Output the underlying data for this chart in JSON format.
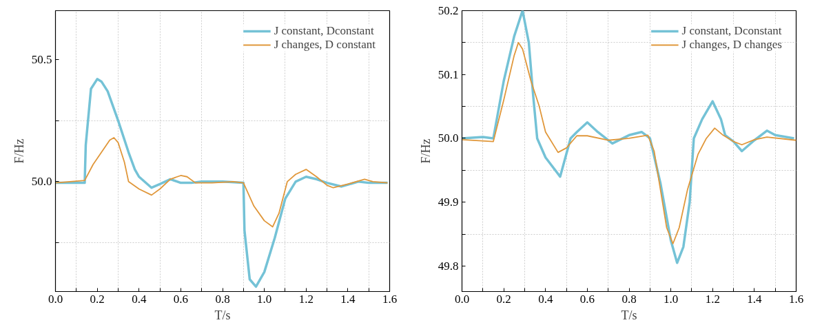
{
  "chart_data": [
    {
      "type": "line",
      "xlabel": "T/s",
      "ylabel": "F/Hz",
      "xlim": [
        0,
        1.6
      ],
      "ylim": [
        49.55,
        50.7
      ],
      "grid": true,
      "legend": "top right",
      "line_style": "solid",
      "xticks": [
        {
          "value": 0,
          "label": "0.0"
        },
        {
          "value": 0.1,
          "label": null
        },
        {
          "value": 0.2,
          "label": "0.2"
        },
        {
          "value": 0.3,
          "label": null
        },
        {
          "value": 0.4,
          "label": "0.4"
        },
        {
          "value": 0.5,
          "label": null
        },
        {
          "value": 0.6,
          "label": "0.6"
        },
        {
          "value": 0.7,
          "label": null
        },
        {
          "value": 0.8,
          "label": "0.8"
        },
        {
          "value": 0.9,
          "label": null
        },
        {
          "value": 1,
          "label": "1.0"
        },
        {
          "value": 1.1,
          "label": null
        },
        {
          "value": 1.2,
          "label": "1.2"
        },
        {
          "value": 1.3,
          "label": null
        },
        {
          "value": 1.4,
          "label": "1.4"
        },
        {
          "value": 1.5,
          "label": null
        },
        {
          "value": 1.6,
          "label": "1.6"
        }
      ],
      "yticks": [
        {
          "value": 49.75,
          "label": null
        },
        {
          "value": 50,
          "label": "50.0"
        },
        {
          "value": 50.25,
          "label": null
        },
        {
          "value": 50.5,
          "label": "50.5"
        }
      ],
      "series": [
        {
          "name": "J constant, Dconstant",
          "color": "#74c2d6",
          "x": [
            0,
            0.14,
            0.145,
            0.17,
            0.2,
            0.22,
            0.25,
            0.3,
            0.35,
            0.38,
            0.4,
            0.46,
            0.5,
            0.55,
            0.6,
            0.65,
            0.7,
            0.8,
            0.9,
            0.905,
            0.93,
            0.96,
            1.0,
            1.05,
            1.1,
            1.15,
            1.2,
            1.25,
            1.3,
            1.37,
            1.45,
            1.5,
            1.59
          ],
          "values": [
            49.995,
            49.995,
            50.15,
            50.38,
            50.42,
            50.41,
            50.37,
            50.25,
            50.12,
            50.05,
            50.02,
            49.975,
            49.99,
            50.01,
            49.995,
            49.995,
            50.0,
            50.0,
            49.995,
            49.8,
            49.6,
            49.57,
            49.63,
            49.77,
            49.93,
            50.0,
            50.02,
            50.01,
            49.995,
            49.98,
            50.0,
            49.995,
            49.995
          ]
        },
        {
          "name": "J changes, D constant",
          "color": "#e0973a",
          "x": [
            0,
            0.14,
            0.18,
            0.22,
            0.26,
            0.28,
            0.3,
            0.33,
            0.35,
            0.4,
            0.46,
            0.5,
            0.55,
            0.6,
            0.63,
            0.67,
            0.75,
            0.85,
            0.9,
            0.95,
            1.0,
            1.04,
            1.07,
            1.11,
            1.15,
            1.2,
            1.25,
            1.3,
            1.33,
            1.4,
            1.48,
            1.52,
            1.59
          ],
          "values": [
            49.995,
            50.005,
            50.07,
            50.12,
            50.17,
            50.18,
            50.16,
            50.08,
            50.0,
            49.97,
            49.945,
            49.97,
            50.01,
            50.025,
            50.02,
            49.995,
            49.995,
            50.0,
            49.995,
            49.9,
            49.84,
            49.815,
            49.87,
            50.0,
            50.03,
            50.05,
            50.02,
            49.985,
            49.975,
            49.99,
            50.01,
            50.0,
            49.995
          ]
        }
      ]
    },
    {
      "type": "line",
      "xlabel": "T/s",
      "ylabel": "F/Hz",
      "xlim": [
        0,
        1.6
      ],
      "ylim": [
        49.76,
        50.2
      ],
      "grid": true,
      "legend": "top right",
      "line_style": "solid",
      "xticks": [
        {
          "value": 0,
          "label": "0.0"
        },
        {
          "value": 0.1,
          "label": null
        },
        {
          "value": 0.2,
          "label": "0.2"
        },
        {
          "value": 0.3,
          "label": null
        },
        {
          "value": 0.4,
          "label": "0.4"
        },
        {
          "value": 0.5,
          "label": null
        },
        {
          "value": 0.6,
          "label": "0.6"
        },
        {
          "value": 0.7,
          "label": null
        },
        {
          "value": 0.8,
          "label": "0.8"
        },
        {
          "value": 0.9,
          "label": null
        },
        {
          "value": 1,
          "label": "1.0"
        },
        {
          "value": 1.1,
          "label": null
        },
        {
          "value": 1.2,
          "label": "1.2"
        },
        {
          "value": 1.3,
          "label": null
        },
        {
          "value": 1.4,
          "label": "1.4"
        },
        {
          "value": 1.5,
          "label": null
        },
        {
          "value": 1.6,
          "label": "1.6"
        }
      ],
      "yticks": [
        {
          "value": 49.8,
          "label": "49.8"
        },
        {
          "value": 49.85,
          "label": null
        },
        {
          "value": 49.9,
          "label": "49.9"
        },
        {
          "value": 49.95,
          "label": null
        },
        {
          "value": 50,
          "label": "50.0"
        },
        {
          "value": 50.05,
          "label": null
        },
        {
          "value": 50.1,
          "label": "50.1"
        },
        {
          "value": 50.15,
          "label": null
        },
        {
          "value": 50.2,
          "label": "50.2"
        }
      ],
      "series": [
        {
          "name": "J constant, Dconstant",
          "color": "#74c2d6",
          "x": [
            0,
            0.1,
            0.15,
            0.2,
            0.25,
            0.29,
            0.32,
            0.34,
            0.36,
            0.4,
            0.47,
            0.52,
            0.55,
            0.6,
            0.65,
            0.72,
            0.8,
            0.86,
            0.9,
            0.95,
            1.0,
            1.03,
            1.06,
            1.09,
            1.11,
            1.15,
            1.2,
            1.24,
            1.26,
            1.3,
            1.34,
            1.4,
            1.46,
            1.5,
            1.59
          ],
          "values": [
            50.0,
            50.002,
            50.0,
            50.09,
            50.16,
            50.2,
            50.15,
            50.07,
            50.0,
            49.97,
            49.94,
            50.0,
            50.01,
            50.025,
            50.01,
            49.992,
            50.005,
            50.01,
            50.0,
            49.93,
            49.84,
            49.805,
            49.83,
            49.9,
            50.0,
            50.03,
            50.058,
            50.03,
            50.005,
            49.995,
            49.98,
            49.997,
            50.012,
            50.005,
            50.0
          ]
        },
        {
          "name": "J changes, D changes",
          "color": "#e0973a",
          "x": [
            0,
            0.15,
            0.2,
            0.25,
            0.27,
            0.29,
            0.33,
            0.37,
            0.4,
            0.46,
            0.5,
            0.55,
            0.6,
            0.7,
            0.8,
            0.89,
            0.92,
            0.95,
            0.98,
            1.01,
            1.04,
            1.08,
            1.13,
            1.17,
            1.21,
            1.25,
            1.3,
            1.34,
            1.4,
            1.46,
            1.6
          ],
          "values": [
            49.998,
            49.995,
            50.06,
            50.13,
            50.15,
            50.14,
            50.09,
            50.05,
            50.01,
            49.978,
            49.985,
            50.004,
            50.004,
            49.997,
            50.0,
            50.005,
            49.98,
            49.92,
            49.86,
            49.835,
            49.86,
            49.92,
            49.975,
            50.0,
            50.016,
            50.005,
            49.995,
            49.99,
            49.998,
            50.002,
            49.997
          ]
        }
      ]
    }
  ]
}
